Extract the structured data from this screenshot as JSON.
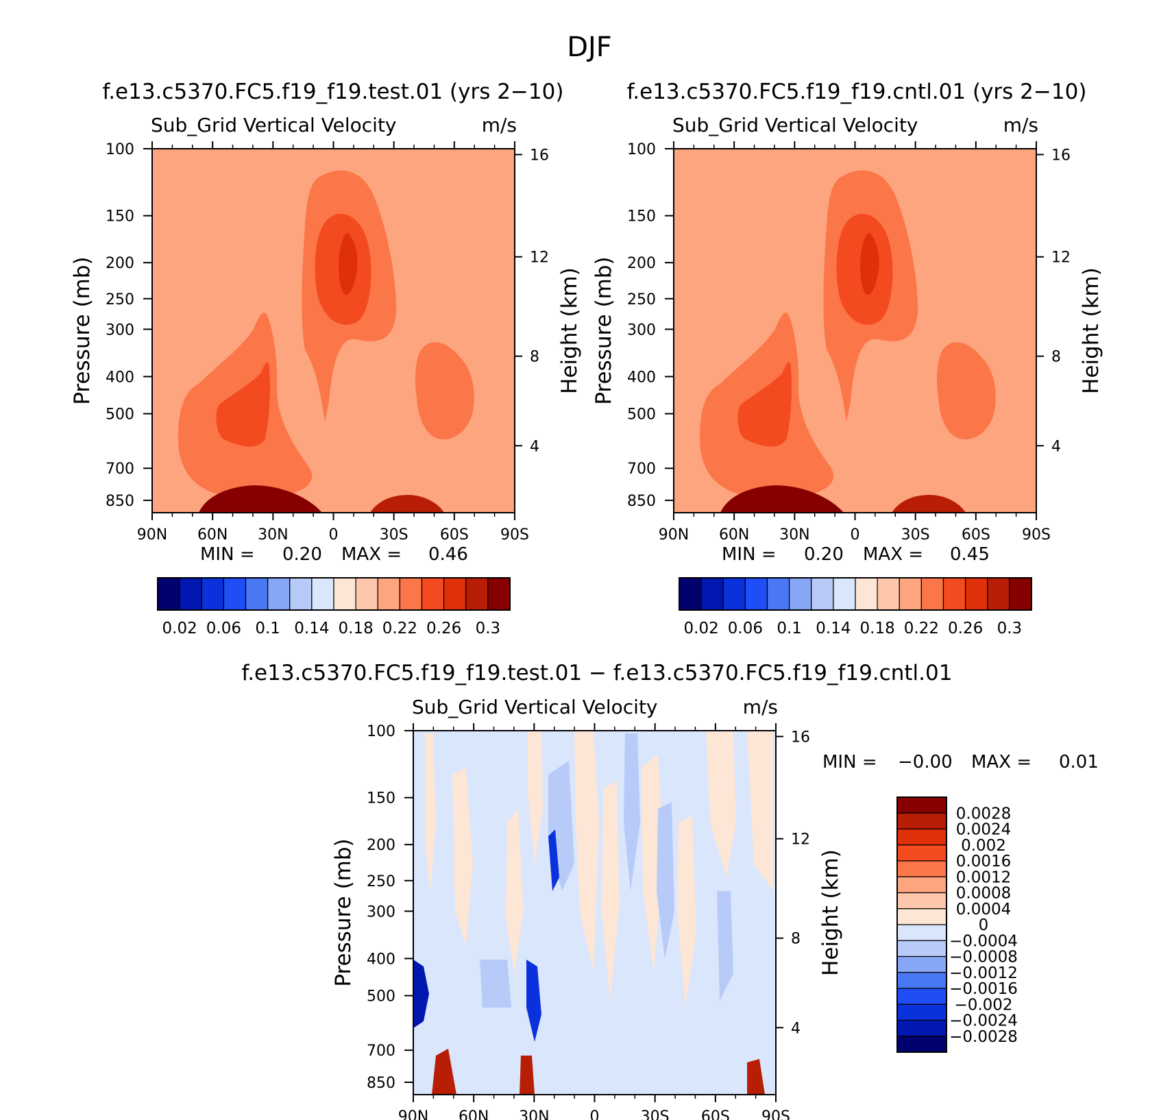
{
  "figure_title": "DJF",
  "colors": {
    "levels_abs": [
      "#00006e",
      "#0018b0",
      "#0b31dc",
      "#1f4ef7",
      "#4a78f4",
      "#86a6f6",
      "#b8cbf8",
      "#d9e6fb",
      "#fde6d6",
      "#fdc7ab",
      "#fca57f",
      "#fb7648",
      "#f44a20",
      "#e0300a",
      "#b81e06",
      "#870000"
    ],
    "levels_diff": [
      "#00006e",
      "#0018b0",
      "#0b31dc",
      "#1f4ef7",
      "#4a78f4",
      "#86a6f6",
      "#b8cbf8",
      "#d9e6fb",
      "#fde6d6",
      "#fdc7ab",
      "#fca57f",
      "#fb7648",
      "#f44a20",
      "#e0300a",
      "#b81e06",
      "#870000"
    ]
  },
  "chart_data": [
    {
      "type": "heatmap",
      "title": "f.e13.c5370.FC5.f19_f19.test.01 (yrs 2-10)",
      "variable": "Sub_Grid Vertical Velocity",
      "units": "m/s",
      "ylabel": "Pressure (mb)",
      "ylabel_right": "Height (km)",
      "x_ticks": [
        "90N",
        "60N",
        "30N",
        "0",
        "30S",
        "60S",
        "90S"
      ],
      "y_ticks": [
        "100",
        "150",
        "200",
        "250",
        "300",
        "400",
        "500",
        "700",
        "850"
      ],
      "y_ticks_right": [
        "16",
        "12",
        "8",
        "4"
      ],
      "min_label": "MIN =",
      "min_value": "0.20",
      "max_label": "MAX =",
      "max_value": "0.46",
      "colorbar_labels": [
        "0.02",
        "0.06",
        "0.1",
        "0.14",
        "0.18",
        "0.22",
        "0.26",
        "0.3"
      ],
      "contour_regions": [
        {
          "name": "background",
          "level": 10
        },
        {
          "name": "upper-tropical-plume",
          "level": 11
        },
        {
          "name": "upper-tropical-core",
          "level": 12
        },
        {
          "name": "upper-tropical-peak",
          "level": 13
        },
        {
          "name": "nh-midlat-plume",
          "level": 11
        },
        {
          "name": "nh-midlat-core",
          "level": 12
        },
        {
          "name": "sh-midtrop-blob",
          "level": 11
        },
        {
          "name": "nh-surface-max",
          "level": 15
        },
        {
          "name": "sh-surface-max",
          "level": 14
        }
      ]
    },
    {
      "type": "heatmap",
      "title": "f.e13.c5370.FC5.f19_f19.cntl.01 (yrs 2-10)",
      "variable": "Sub_Grid Vertical Velocity",
      "units": "m/s",
      "ylabel": "Pressure (mb)",
      "ylabel_right": "Height (km)",
      "x_ticks": [
        "90N",
        "60N",
        "30N",
        "0",
        "30S",
        "60S",
        "90S"
      ],
      "y_ticks": [
        "100",
        "150",
        "200",
        "250",
        "300",
        "400",
        "500",
        "700",
        "850"
      ],
      "y_ticks_right": [
        "16",
        "12",
        "8",
        "4"
      ],
      "min_label": "MIN =",
      "min_value": "0.20",
      "max_label": "MAX =",
      "max_value": "0.45",
      "colorbar_labels": [
        "0.02",
        "0.06",
        "0.1",
        "0.14",
        "0.18",
        "0.22",
        "0.26",
        "0.3"
      ],
      "contour_regions": [
        {
          "name": "background",
          "level": 10
        },
        {
          "name": "upper-tropical-plume",
          "level": 11
        },
        {
          "name": "upper-tropical-core",
          "level": 12
        },
        {
          "name": "upper-tropical-peak",
          "level": 13
        },
        {
          "name": "nh-midlat-plume",
          "level": 11
        },
        {
          "name": "nh-midlat-core",
          "level": 12
        },
        {
          "name": "sh-midtrop-blob",
          "level": 11
        },
        {
          "name": "nh-surface-max",
          "level": 15
        },
        {
          "name": "sh-surface-max",
          "level": 14
        }
      ]
    },
    {
      "type": "heatmap",
      "title": "f.e13.c5370.FC5.f19_f19.test.01 - f.e13.c5370.FC5.f19_f19.cntl.01",
      "variable": "Sub_Grid Vertical Velocity",
      "units": "m/s",
      "ylabel": "Pressure (mb)",
      "ylabel_right": "Height (km)",
      "x_ticks": [
        "90N",
        "60N",
        "30N",
        "0",
        "30S",
        "60S",
        "90S"
      ],
      "y_ticks": [
        "100",
        "150",
        "200",
        "250",
        "300",
        "400",
        "500",
        "700",
        "850"
      ],
      "y_ticks_right": [
        "16",
        "12",
        "8",
        "4"
      ],
      "min_label": "MIN =",
      "min_value": "-0.00",
      "max_label": "MAX =",
      "max_value": "0.01",
      "colorbar_labels": [
        "0.0028",
        "0.0024",
        "0.002",
        "0.0016",
        "0.0012",
        "0.0008",
        "0.0004",
        "0",
        "-0.0004",
        "-0.0008",
        "-0.0012",
        "-0.0016",
        "-0.002",
        "-0.0024",
        "-0.0028"
      ],
      "contour_regions": [
        {
          "name": "background",
          "level": 7
        },
        {
          "name": "positive-streaks",
          "level": 8
        },
        {
          "name": "negative-streaks",
          "level": 6
        },
        {
          "name": "nh-60n-negative-core",
          "level": 1
        },
        {
          "name": "30n-negative-core",
          "level": 2
        },
        {
          "name": "low-level-positive-cores",
          "level": 14
        }
      ]
    }
  ]
}
